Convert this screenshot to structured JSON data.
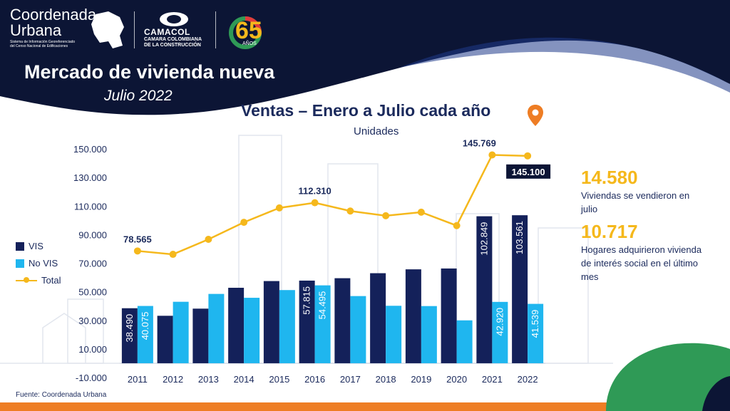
{
  "brand": {
    "name_line1": "Coordenada",
    "name_line2": "Urbana",
    "tagline_line1": "Sistema de Información Georeferenciado",
    "tagline_line2": "del Censo Nacional de Edificaciones",
    "partner_name": "CAMACOL",
    "partner_sub1": "CAMARA COLOMBIANA",
    "partner_sub2": "DE LA CONSTRUCCIÓN",
    "anniversary_number": "65",
    "anniversary_text": "AÑOS"
  },
  "header": {
    "title": "Mercado de vivienda nueva",
    "subtitle": "Julio 2022"
  },
  "kpis": [
    {
      "value": "14.580",
      "text_line1": "Viviendas se vendieron en",
      "text_line2": "julio",
      "text_line3": ""
    },
    {
      "value": "10.717",
      "text_line1": "Hogares adquirieron vivienda",
      "text_line2": "de interés social en el último",
      "text_line3": "mes"
    }
  ],
  "source": "Fuente: Coordenada Urbana",
  "colors": {
    "vis": "#14215a",
    "novis": "#1fb6ef",
    "total": "#f5b81c",
    "navy": "#0c1535",
    "title": "#1b2a5c",
    "accent_orange": "#ee7d24"
  },
  "icons": {
    "location": "location-pin-icon"
  },
  "chart_data": {
    "type": "bar",
    "title": "Ventas – Enero a Julio cada año",
    "subtitle": "Unidades",
    "categories": [
      "2011",
      "2012",
      "2013",
      "2014",
      "2015",
      "2016",
      "2017",
      "2018",
      "2019",
      "2020",
      "2021",
      "2022"
    ],
    "series": [
      {
        "name": "VIS",
        "type": "bar",
        "values": [
          38490,
          33200,
          38200,
          52800,
          57500,
          57815,
          59500,
          63000,
          65700,
          66300,
          102849,
          103561
        ]
      },
      {
        "name": "No VIS",
        "type": "bar",
        "values": [
          40075,
          43000,
          48500,
          45800,
          51200,
          54495,
          47000,
          40200,
          40000,
          30000,
          42920,
          41539
        ]
      },
      {
        "name": "Total",
        "type": "line",
        "values": [
          78565,
          76200,
          86700,
          98600,
          108700,
          112310,
          106500,
          103200,
          105700,
          96300,
          145769,
          145100
        ]
      }
    ],
    "data_labels": [
      {
        "series": "VIS",
        "index": 0,
        "text": "38.490"
      },
      {
        "series": "No VIS",
        "index": 0,
        "text": "40.075"
      },
      {
        "series": "VIS",
        "index": 5,
        "text": "57.815"
      },
      {
        "series": "No VIS",
        "index": 5,
        "text": "54.495"
      },
      {
        "series": "VIS",
        "index": 10,
        "text": "102.849"
      },
      {
        "series": "No VIS",
        "index": 10,
        "text": "42.920"
      },
      {
        "series": "VIS",
        "index": 11,
        "text": "103.561"
      },
      {
        "series": "No VIS",
        "index": 11,
        "text": "41.539"
      },
      {
        "series": "Total",
        "index": 0,
        "text": "78.565"
      },
      {
        "series": "Total",
        "index": 5,
        "text": "112.310"
      },
      {
        "series": "Total",
        "index": 10,
        "text": "145.769"
      },
      {
        "series": "Total",
        "index": 11,
        "text": "145.100",
        "boxed": true
      }
    ],
    "y_ticks": [
      "150.000",
      "130.000",
      "110.000",
      "90.000",
      "70.000",
      "50.000",
      "30.000",
      "10.000",
      "-10.000"
    ],
    "y_tick_values": [
      150000,
      130000,
      110000,
      90000,
      70000,
      50000,
      30000,
      10000,
      -10000
    ],
    "ylim": [
      -10000,
      150000
    ],
    "xlabel": "",
    "ylabel": "",
    "grid": false,
    "legend": {
      "position": "left",
      "entries": [
        "VIS",
        "No VIS",
        "Total"
      ]
    }
  }
}
